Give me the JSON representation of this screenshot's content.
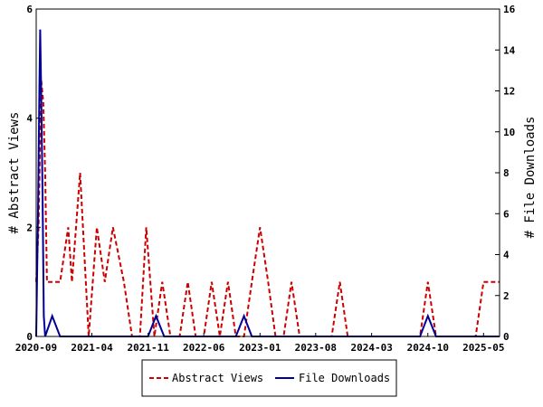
{
  "chart_data": {
    "type": "line",
    "ylabel": "# Abstract Views",
    "y2label": "# File Downloads",
    "ylim": [
      0,
      6
    ],
    "y2lim": [
      0,
      16
    ],
    "yticks": [
      "0",
      "2",
      "4",
      "6"
    ],
    "y2ticks": [
      "0",
      "2",
      "4",
      "6",
      "8",
      "10",
      "12",
      "14",
      "16"
    ],
    "xlim": [
      "2020-09-01",
      "2025-07-01"
    ],
    "xticks": [
      "2020-09",
      "2021-04",
      "2021-11",
      "2022-06",
      "2023-01",
      "2023-08",
      "2024-03",
      "2024-10",
      "2025-05"
    ],
    "grid": false,
    "legend_position": "bottom-center",
    "series": [
      {
        "name": "Abstract Views",
        "axis": "left",
        "color": "#cc0000",
        "style": "dashed",
        "points": [
          [
            "2020-09-01",
            1
          ],
          [
            "2020-09-10",
            2
          ],
          [
            "2020-09-20",
            4.7
          ],
          [
            "2020-09-28",
            4.3
          ],
          [
            "2020-10-05",
            3
          ],
          [
            "2020-10-12",
            1
          ],
          [
            "2020-11-01",
            1
          ],
          [
            "2020-12-01",
            1
          ],
          [
            "2021-01-01",
            2
          ],
          [
            "2021-01-15",
            1
          ],
          [
            "2021-02-15",
            3
          ],
          [
            "2021-03-20",
            0
          ],
          [
            "2021-04-20",
            2
          ],
          [
            "2021-05-20",
            1
          ],
          [
            "2021-06-20",
            2
          ],
          [
            "2021-08-01",
            1
          ],
          [
            "2021-09-01",
            0
          ],
          [
            "2021-10-01",
            0
          ],
          [
            "2021-10-25",
            2
          ],
          [
            "2021-11-25",
            0
          ],
          [
            "2021-12-25",
            1
          ],
          [
            "2022-01-25",
            0
          ],
          [
            "2022-03-01",
            0
          ],
          [
            "2022-04-01",
            1
          ],
          [
            "2022-05-01",
            0
          ],
          [
            "2022-06-01",
            0
          ],
          [
            "2022-07-01",
            1
          ],
          [
            "2022-08-01",
            0
          ],
          [
            "2022-09-01",
            1
          ],
          [
            "2022-10-01",
            0
          ],
          [
            "2022-11-01",
            0
          ],
          [
            "2022-12-01",
            1
          ],
          [
            "2023-01-01",
            2
          ],
          [
            "2023-02-01",
            1
          ],
          [
            "2023-03-01",
            0
          ],
          [
            "2023-04-01",
            0
          ],
          [
            "2023-05-01",
            1
          ],
          [
            "2023-06-01",
            0
          ],
          [
            "2023-10-01",
            0
          ],
          [
            "2023-11-01",
            1
          ],
          [
            "2023-12-01",
            0
          ],
          [
            "2024-09-01",
            0
          ],
          [
            "2024-10-01",
            1
          ],
          [
            "2024-11-01",
            0
          ],
          [
            "2025-04-01",
            0
          ],
          [
            "2025-05-01",
            1
          ],
          [
            "2025-07-01",
            1
          ]
        ]
      },
      {
        "name": "File Downloads",
        "axis": "right",
        "color": "#000099",
        "style": "solid",
        "points": [
          [
            "2020-09-01",
            0
          ],
          [
            "2020-09-08",
            6
          ],
          [
            "2020-09-13",
            12
          ],
          [
            "2020-09-16",
            15
          ],
          [
            "2020-09-20",
            12
          ],
          [
            "2020-09-25",
            7
          ],
          [
            "2020-09-30",
            1
          ],
          [
            "2020-10-05",
            0
          ],
          [
            "2020-11-01",
            1
          ],
          [
            "2020-12-01",
            0
          ],
          [
            "2021-11-01",
            0
          ],
          [
            "2021-12-01",
            1
          ],
          [
            "2022-01-01",
            0
          ],
          [
            "2022-10-01",
            0
          ],
          [
            "2022-11-01",
            1
          ],
          [
            "2022-12-01",
            0
          ],
          [
            "2024-09-01",
            0
          ],
          [
            "2024-10-01",
            1
          ],
          [
            "2024-11-01",
            0
          ],
          [
            "2025-07-01",
            0
          ]
        ]
      }
    ]
  }
}
